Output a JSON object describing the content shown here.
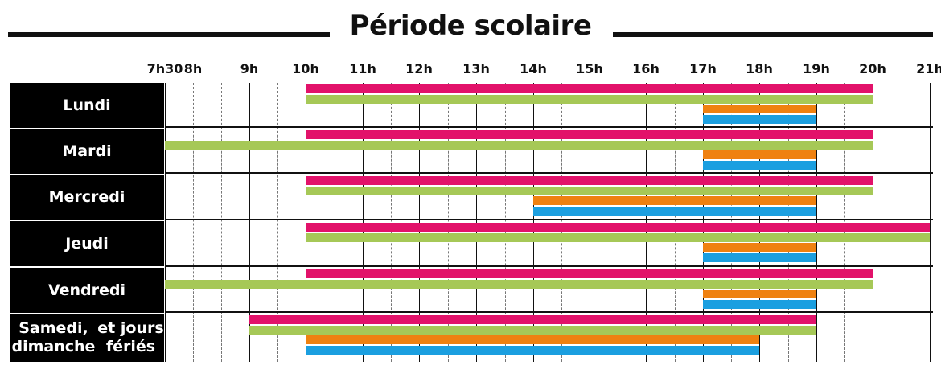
{
  "title": "Période scolaire",
  "time_labels": [
    "7h30",
    "8h",
    "9h",
    "10h",
    "11h",
    "12h",
    "13h",
    "14h",
    "15h",
    "16h",
    "17h",
    "18h",
    "19h",
    "20h",
    "21h"
  ],
  "colors": {
    "magenta": "#e2126a",
    "green": "#a6c857",
    "orange": "#ef8110",
    "blue": "#1b9fe0",
    "label_bg": "#000000",
    "label_text": "#ffffff"
  },
  "days": [
    {
      "label": "Lundi",
      "bars": [
        {
          "color": "magenta",
          "start": 10,
          "end": 20
        },
        {
          "color": "green",
          "start": 10,
          "end": 20
        },
        {
          "color": "orange",
          "start": 17,
          "end": 19
        },
        {
          "color": "blue",
          "start": 17,
          "end": 19
        }
      ]
    },
    {
      "label": "Mardi",
      "bars": [
        {
          "color": "magenta",
          "start": 10,
          "end": 20
        },
        {
          "color": "green",
          "start": 7.5,
          "end": 20
        },
        {
          "color": "orange",
          "start": 17,
          "end": 19
        },
        {
          "color": "blue",
          "start": 17,
          "end": 19
        }
      ]
    },
    {
      "label": "Mercredi",
      "bars": [
        {
          "color": "magenta",
          "start": 10,
          "end": 20
        },
        {
          "color": "green",
          "start": 10,
          "end": 20
        },
        {
          "color": "orange",
          "start": 14,
          "end": 19
        },
        {
          "color": "blue",
          "start": 14,
          "end": 19
        }
      ]
    },
    {
      "label": "Jeudi",
      "bars": [
        {
          "color": "magenta",
          "start": 10,
          "end": 21
        },
        {
          "color": "green",
          "start": 10,
          "end": 21
        },
        {
          "color": "orange",
          "start": 17,
          "end": 19
        },
        {
          "color": "blue",
          "start": 17,
          "end": 19
        }
      ]
    },
    {
      "label": "Vendredi",
      "bars": [
        {
          "color": "magenta",
          "start": 10,
          "end": 20
        },
        {
          "color": "green",
          "start": 7.5,
          "end": 20
        },
        {
          "color": "orange",
          "start": 17,
          "end": 19
        },
        {
          "color": "blue",
          "start": 17,
          "end": 19
        }
      ]
    },
    {
      "label": "Samedi, dimanche\net jours fériés",
      "bars": [
        {
          "color": "magenta",
          "start": 9,
          "end": 19
        },
        {
          "color": "green",
          "start": 9,
          "end": 19
        },
        {
          "color": "orange",
          "start": 10,
          "end": 18
        },
        {
          "color": "blue",
          "start": 10,
          "end": 18
        }
      ]
    }
  ]
}
